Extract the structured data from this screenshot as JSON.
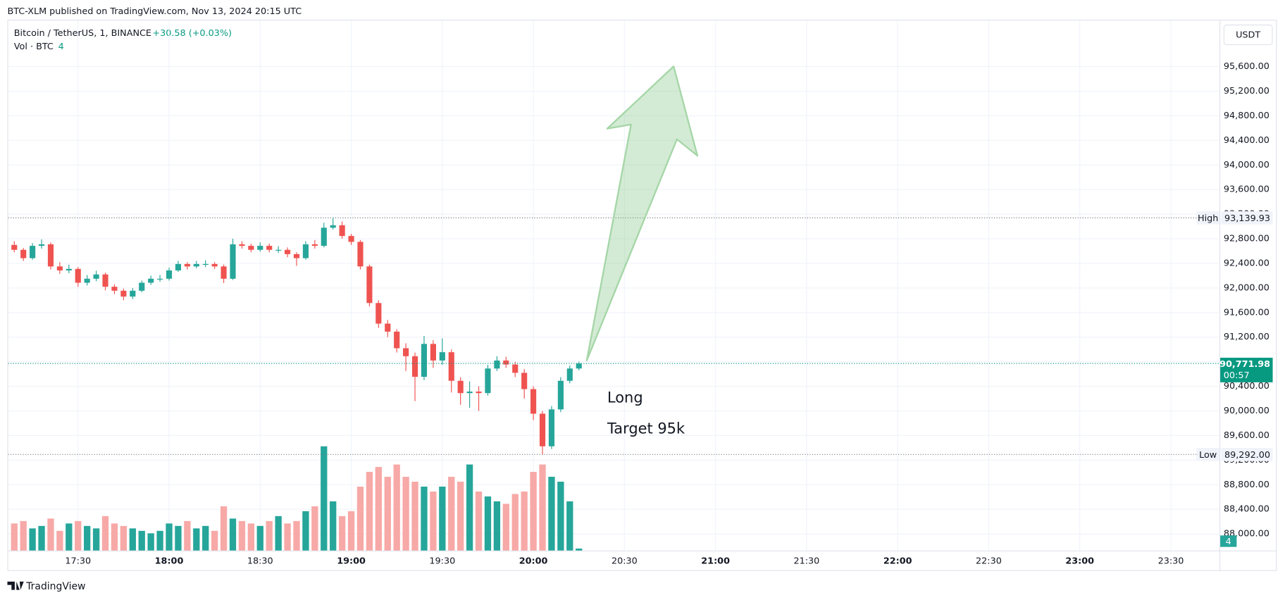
{
  "header": {
    "published": "BTC-XLM published on TradingView.com, Nov 13, 2024 20:15 UTC",
    "footer": "TradingView",
    "currency": "USDT"
  },
  "chart_data": {
    "type": "candlestick",
    "title": "Bitcoin / TetherUS, 1, BINANCE",
    "change": "+30.58 (+0.03%)",
    "volume_title": "Vol · BTC",
    "x": [
      "17:09",
      "17:12",
      "17:15",
      "17:18",
      "17:21",
      "17:24",
      "17:27",
      "17:30",
      "17:33",
      "17:36",
      "17:39",
      "17:42",
      "17:45",
      "17:48",
      "17:51",
      "17:54",
      "17:57",
      "18:00",
      "18:03",
      "18:06",
      "18:09",
      "18:12",
      "18:15",
      "18:18",
      "18:21",
      "18:24",
      "18:27",
      "18:30",
      "18:33",
      "18:36",
      "18:39",
      "18:42",
      "18:45",
      "18:48",
      "18:51",
      "18:54",
      "18:57",
      "19:00",
      "19:03",
      "19:06",
      "19:09",
      "19:12",
      "19:15",
      "19:18",
      "19:21",
      "19:24",
      "19:27",
      "19:30",
      "19:33",
      "19:36",
      "19:39",
      "19:42",
      "19:45",
      "19:48",
      "19:51",
      "19:54",
      "19:57",
      "20:00",
      "20:03",
      "20:06",
      "20:09",
      "20:12",
      "20:15"
    ],
    "open": [
      92700,
      92620,
      92485,
      92685,
      92710,
      92350,
      92285,
      92310,
      92085,
      92150,
      92220,
      92020,
      91955,
      91860,
      91955,
      92085,
      92150,
      92150,
      92285,
      92390,
      92350,
      92390,
      92390,
      92350,
      92150,
      92710,
      92685,
      92620,
      92685,
      92620,
      92620,
      92550,
      92485,
      92710,
      92685,
      92980,
      93020,
      92845,
      92750,
      92350,
      91755,
      91420,
      91290,
      91020,
      90890,
      90555,
      91090,
      90820,
      90955,
      90490,
      90290,
      90315,
      90290,
      90690,
      90820,
      90755,
      90620,
      90355,
      89955,
      89425,
      90025,
      90490,
      90690
    ],
    "high": [
      92760,
      92650,
      92730,
      92790,
      92740,
      92420,
      92380,
      92340,
      92210,
      92280,
      92250,
      92060,
      91990,
      92000,
      92120,
      92200,
      92210,
      92330,
      92440,
      92420,
      92440,
      92450,
      92420,
      92380,
      92800,
      92760,
      92720,
      92740,
      92720,
      92680,
      92660,
      92580,
      92760,
      92780,
      93060,
      93139.93,
      93080,
      92880,
      92780,
      92380,
      91800,
      91480,
      91330,
      91100,
      90950,
      91220,
      91150,
      91180,
      91000,
      90550,
      90480,
      90400,
      90750,
      90890,
      90880,
      90800,
      90680,
      90400,
      90000,
      90080,
      90550,
      90740,
      90800
    ],
    "low": [
      92580,
      92440,
      92460,
      92640,
      92300,
      92230,
      92240,
      92020,
      92040,
      92110,
      91960,
      91900,
      91800,
      91820,
      91930,
      92050,
      92100,
      92120,
      92260,
      92300,
      92320,
      92340,
      92310,
      92080,
      92130,
      92640,
      92580,
      92590,
      92580,
      92570,
      92500,
      92360,
      92460,
      92640,
      92660,
      92950,
      92800,
      92700,
      92300,
      91700,
      91350,
      91200,
      90950,
      90650,
      90160,
      90500,
      90700,
      90750,
      90300,
      90100,
      90050,
      90000,
      90250,
      90650,
      90700,
      90550,
      90200,
      89850,
      89292,
      89380,
      89980,
      90450,
      90660
    ],
    "close": [
      92620,
      92485,
      92685,
      92710,
      92350,
      92285,
      92310,
      92085,
      92150,
      92220,
      92020,
      91955,
      91860,
      91955,
      92085,
      92150,
      92150,
      92285,
      92390,
      92350,
      92390,
      92390,
      92350,
      92150,
      92710,
      92685,
      92620,
      92685,
      92620,
      92620,
      92550,
      92485,
      92710,
      92685,
      92980,
      93020,
      92845,
      92750,
      92350,
      91755,
      91420,
      91290,
      91020,
      90890,
      90555,
      91090,
      90820,
      90955,
      90490,
      90290,
      90315,
      90290,
      90690,
      90820,
      90755,
      90620,
      90355,
      89955,
      89425,
      90025,
      90490,
      90690,
      90771.98
    ],
    "volume": [
      55,
      60,
      45,
      50,
      65,
      40,
      55,
      60,
      50,
      45,
      70,
      55,
      50,
      45,
      40,
      35,
      40,
      55,
      50,
      60,
      45,
      50,
      40,
      90,
      65,
      60,
      55,
      50,
      60,
      70,
      55,
      60,
      80,
      90,
      212,
      100,
      70,
      80,
      130,
      160,
      170,
      150,
      175,
      150,
      140,
      130,
      120,
      130,
      150,
      140,
      175,
      120,
      110,
      100,
      95,
      115,
      120,
      160,
      175,
      150,
      140,
      100,
      4
    ],
    "up_color": "#26a69a",
    "down_color": "#ef5350",
    "volume_up_color": "#26a69a",
    "volume_down_color": "#f7a9a7",
    "xlim": [
      "17:07",
      "23:46"
    ],
    "xticks": [
      "17:30",
      "18:00",
      "18:30",
      "19:00",
      "19:30",
      "20:00",
      "20:30",
      "21:00",
      "21:30",
      "22:00",
      "22:30",
      "23:00",
      "23:30"
    ],
    "ylim": [
      87730,
      96350
    ],
    "yticks": [
      {
        "value": 88000,
        "label": "88,000.00"
      },
      {
        "value": 88400,
        "label": "88,400.00"
      },
      {
        "value": 88800,
        "label": "88,800.00"
      },
      {
        "value": 89200,
        "label": "89,200.00"
      },
      {
        "value": 89600,
        "label": "89,600.00"
      },
      {
        "value": 90000,
        "label": "90,000.00"
      },
      {
        "value": 90400,
        "label": "90,400.00"
      },
      {
        "value": 90800,
        "label": "90,800.00"
      },
      {
        "value": 91200,
        "label": "91,200.00"
      },
      {
        "value": 91600,
        "label": "91,600.00"
      },
      {
        "value": 92000,
        "label": "92,000.00"
      },
      {
        "value": 92400,
        "label": "92,400.00"
      },
      {
        "value": 92800,
        "label": "92,800.00"
      },
      {
        "value": 93200,
        "label": "93,200.00"
      },
      {
        "value": 93600,
        "label": "93,600.00"
      },
      {
        "value": 94000,
        "label": "94,000.00"
      },
      {
        "value": 94400,
        "label": "94,400.00"
      },
      {
        "value": 94800,
        "label": "94,800.00"
      },
      {
        "value": 95200,
        "label": "95,200.00"
      },
      {
        "value": 95600,
        "label": "95,600.00"
      }
    ],
    "volume_ylim": [
      0,
      500
    ],
    "grid": true,
    "price_lines": [
      {
        "name": "High",
        "value": 93139.93,
        "label": "93,139.93"
      },
      {
        "name": "Low",
        "value": 89292,
        "label": "89,292.00"
      }
    ],
    "last_price": {
      "label": "90,771.98",
      "countdown": "00:57",
      "color": "#089981"
    },
    "annotations": [
      "Long",
      "Target 95k"
    ]
  }
}
